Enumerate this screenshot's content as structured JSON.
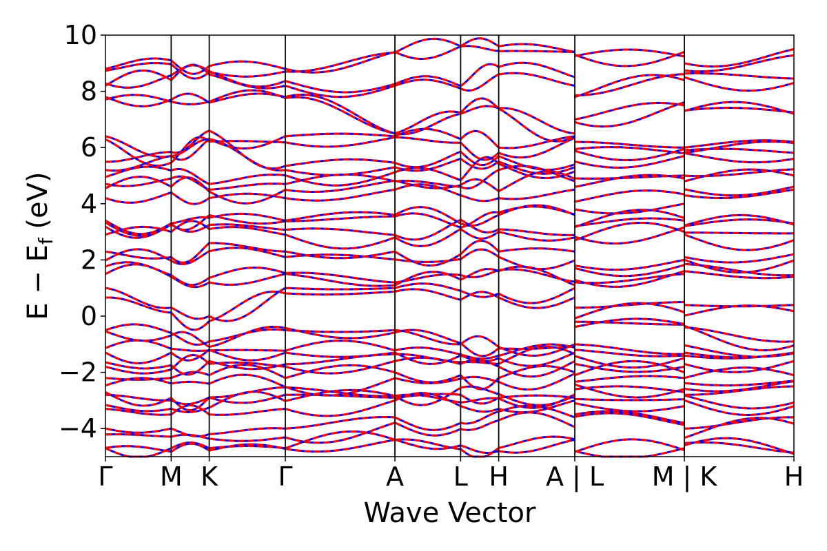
{
  "chart_data": {
    "type": "line",
    "title": "",
    "xlabel": "Wave Vector",
    "ylabel": "E − E",
    "ylabel_subscript": "f",
    "ylabel_unit": " (eV)",
    "ylim": [
      -5,
      10
    ],
    "yticks": [
      -4,
      -2,
      0,
      2,
      4,
      6,
      8,
      10
    ],
    "ytick_labels": [
      "−4",
      "−2",
      "0",
      "2",
      "4",
      "6",
      "8",
      "10"
    ],
    "x_segments": [
      {
        "from": "Γ",
        "to": "M",
        "length": 0.57
      },
      {
        "from": "M",
        "to": "K",
        "length": 0.33
      },
      {
        "from": "K",
        "to": "Γ",
        "length": 0.66
      },
      {
        "from": "Γ",
        "to": "A",
        "length": 0.95
      },
      {
        "from": "A",
        "to": "L",
        "length": 0.57
      },
      {
        "from": "L",
        "to": "H",
        "length": 0.33
      },
      {
        "from": "H",
        "to": "A",
        "length": 0.66
      },
      {
        "from": "L",
        "to": "M",
        "length": 0.95
      },
      {
        "from": "K",
        "to": "H",
        "length": 0.95
      }
    ],
    "xticks": [
      0,
      0.57,
      0.9,
      1.56,
      2.51,
      3.08,
      3.41,
      4.07,
      5.02,
      5.97
    ],
    "xtick_labels": [
      "Γ",
      "M",
      "K",
      "Γ",
      "A",
      "L",
      "H",
      "A | L",
      "M | K",
      "H"
    ],
    "series_styles": [
      {
        "color": "#0000ff",
        "dash": "none"
      },
      {
        "color": "#ff0000",
        "dash": "dashed"
      }
    ],
    "band_count": 44,
    "bands_at_kpoints": {
      "k_labels": [
        "Γ",
        "M",
        "K",
        "Γ",
        "A",
        "L",
        "H",
        "A",
        "L",
        "M",
        "K",
        "H"
      ],
      "energies_sample": [
        [
          -4.7,
          -4.7,
          -4.7,
          -4.7,
          -4.4,
          -4.6,
          -4.8,
          -4.4,
          -4.8,
          -4.7,
          -4.6,
          -4.9
        ],
        [
          -4.0,
          -4.0,
          -4.2,
          -4.0,
          -3.6,
          -3.8,
          -3.4,
          -3.6,
          -3.5,
          -3.8,
          -4.0,
          -3.6
        ],
        [
          -3.3,
          -3.5,
          -3.5,
          -3.3,
          -3.0,
          -3.2,
          -3.3,
          -3.0,
          -3.1,
          -3.2,
          -3.0,
          -3.2
        ],
        [
          -2.8,
          -3.0,
          -2.9,
          -2.8,
          -2.9,
          -2.8,
          -2.9,
          -2.9,
          -2.6,
          -2.7,
          -2.8,
          -2.5
        ],
        [
          -2.2,
          -2.2,
          -2.1,
          -2.2,
          -2.0,
          -2.1,
          -2.2,
          -2.0,
          -2.1,
          -2.0,
          -2.2,
          -2.1
        ],
        [
          -1.8,
          -1.9,
          -1.7,
          -1.8,
          -1.6,
          -1.7,
          -1.8,
          -1.6,
          -1.7,
          -1.8,
          -1.7,
          -1.6
        ],
        [
          -1.3,
          -1.3,
          -1.2,
          -1.3,
          -1.3,
          -1.4,
          -1.5,
          -1.3,
          -1.2,
          -1.4,
          -1.3,
          -1.3
        ],
        [
          -0.5,
          -0.6,
          -0.9,
          -0.5,
          -0.5,
          -1.0,
          -1.1,
          -1.0,
          -0.2,
          -0.3,
          -0.4,
          -0.9
        ],
        [
          1.0,
          0.3,
          0.0,
          1.0,
          1.0,
          0.9,
          0.8,
          1.0,
          0.3,
          0.5,
          0.4,
          0.4
        ],
        [
          1.5,
          1.4,
          1.2,
          1.5,
          1.1,
          1.3,
          1.6,
          1.1,
          1.2,
          1.5,
          1.6,
          1.4
        ],
        [
          2.3,
          2.1,
          2.6,
          2.3,
          2.3,
          2.2,
          2.3,
          2.3,
          1.8,
          2.0,
          2.1,
          2.2
        ],
        [
          2.9,
          3.0,
          3.1,
          2.9,
          2.8,
          3.1,
          3.0,
          2.8,
          2.7,
          3.0,
          2.9,
          2.7
        ],
        [
          3.4,
          3.3,
          3.5,
          3.4,
          3.6,
          3.3,
          3.6,
          3.6,
          3.2,
          3.4,
          3.2,
          3.3
        ],
        [
          4.2,
          4.4,
          4.2,
          4.2,
          4.5,
          4.3,
          4.2,
          4.5,
          3.8,
          4.0,
          4.3,
          4.5
        ],
        [
          4.7,
          4.9,
          4.5,
          4.7,
          4.8,
          4.6,
          5.2,
          4.8,
          4.6,
          4.9,
          4.8,
          5.0
        ],
        [
          5.2,
          5.7,
          6.3,
          5.2,
          5.3,
          5.6,
          5.5,
          5.3,
          5.5,
          5.7,
          5.8,
          5.6
        ],
        [
          6.4,
          5.7,
          6.3,
          6.4,
          6.4,
          6.3,
          6.0,
          6.4,
          6.2,
          6.0,
          6.0,
          6.2
        ],
        [
          7.8,
          7.7,
          7.6,
          7.8,
          6.5,
          7.2,
          7.4,
          6.5,
          7.0,
          7.5,
          7.3,
          7.2
        ],
        [
          8.2,
          8.4,
          8.6,
          8.2,
          8.2,
          8.1,
          8.6,
          8.2,
          7.8,
          8.4,
          8.5,
          8.3
        ],
        [
          8.8,
          9.1,
          8.9,
          8.8,
          9.4,
          9.6,
          9.6,
          9.4,
          9.3,
          9.4,
          9.0,
          9.5
        ]
      ]
    }
  }
}
